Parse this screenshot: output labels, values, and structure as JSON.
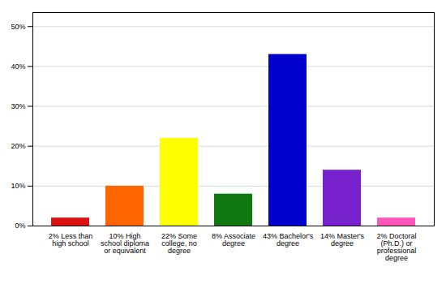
{
  "chart_data": {
    "type": "bar",
    "categories": [
      "2% Less than\nhigh school",
      "10% High\nschool diploma\nor equivalent",
      "22% Some\ncollege, no\ndegree",
      "8% Associate\ndegree",
      "43% Bachelor's\ndegree",
      "14% Master's\ndegree",
      "2% Doctoral\n(Ph.D.) or\nprofessional\ndegree"
    ],
    "values": [
      2,
      10,
      22,
      8,
      43,
      14,
      2
    ],
    "colors": [
      "#dd1111",
      "#ff6600",
      "#ffff00",
      "#117711",
      "#0000cc",
      "#7722cc",
      "#ff55bb"
    ],
    "ylim": [
      0,
      53.5
    ],
    "yticks": [
      {
        "value": 0,
        "label": "0%"
      },
      {
        "value": 10,
        "label": "10%"
      },
      {
        "value": 20,
        "label": "20%"
      },
      {
        "value": 30,
        "label": "30%"
      },
      {
        "value": 40,
        "label": "40%"
      },
      {
        "value": 50,
        "label": "50%"
      }
    ],
    "grid": true
  }
}
